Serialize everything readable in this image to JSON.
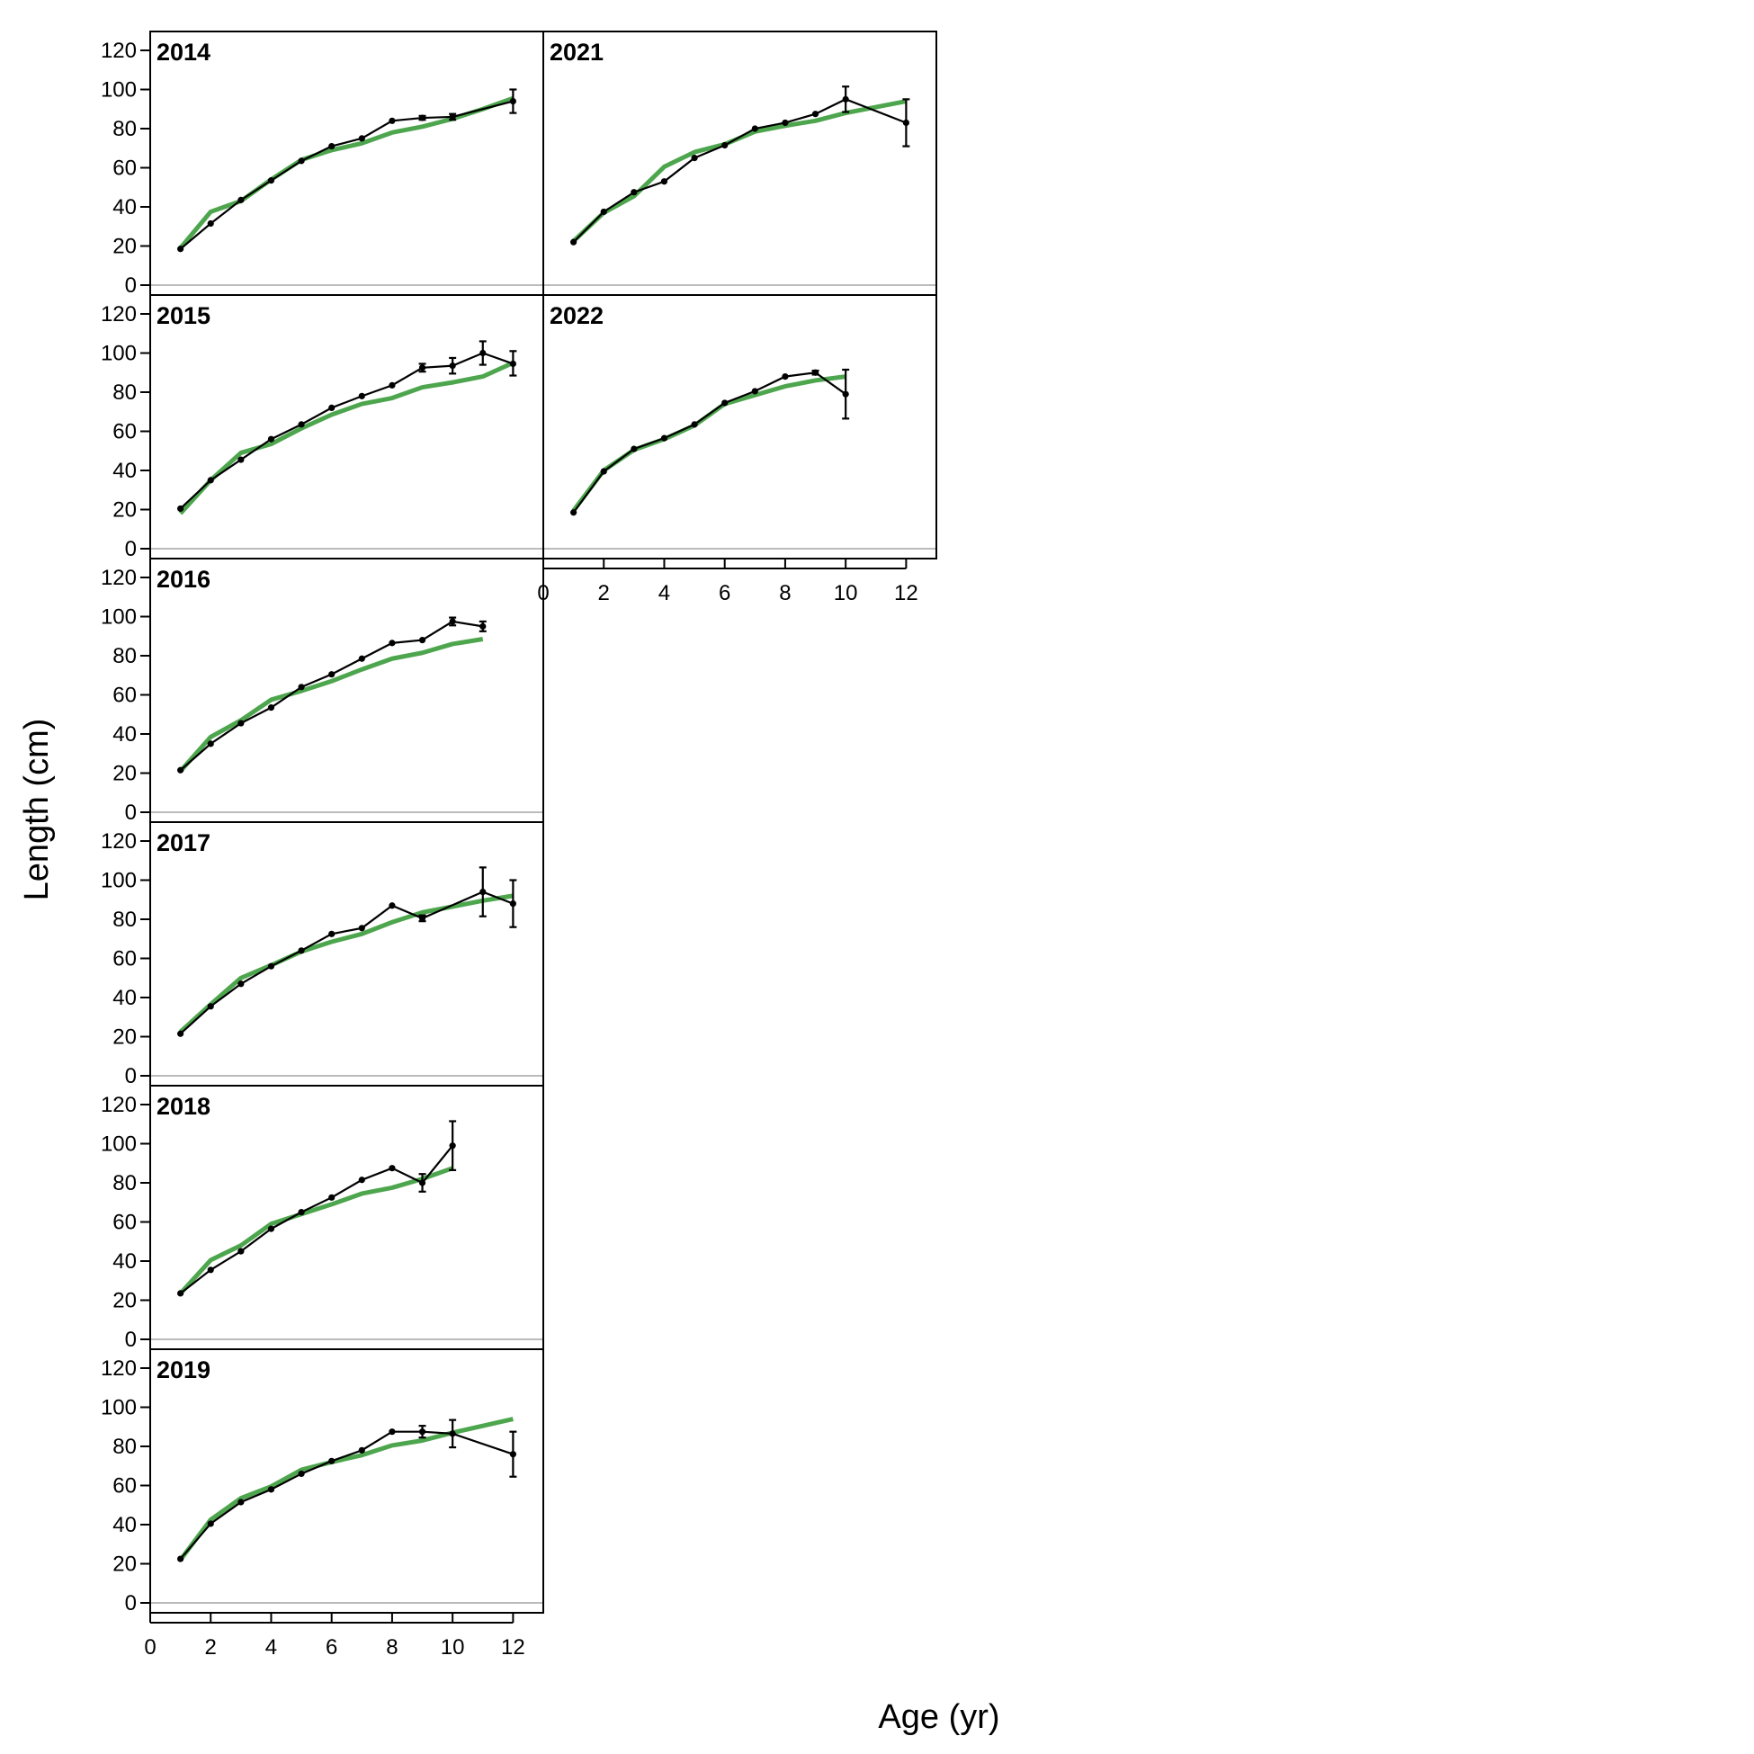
{
  "chart_data": {
    "type": "line",
    "xlabel": "Age (yr)",
    "ylabel": "Length (cm)",
    "xlim": [
      0,
      13
    ],
    "ylim": [
      0,
      120
    ],
    "x_ticks": [
      0,
      2,
      4,
      6,
      8,
      10,
      12
    ],
    "y_ticks": [
      0,
      20,
      40,
      60,
      80,
      100,
      120
    ],
    "grid": false,
    "colors": {
      "observed": "#000000",
      "expected": "#4da64d",
      "zero_line": "#bbbbbb"
    },
    "panels": [
      {
        "label": "2014",
        "observed": [
          {
            "x": 1,
            "y": 18.5
          },
          {
            "x": 2,
            "y": 31.5
          },
          {
            "x": 3,
            "y": 43.5
          },
          {
            "x": 4,
            "y": 53.5
          },
          {
            "x": 5,
            "y": 63.5
          },
          {
            "x": 6,
            "y": 71
          },
          {
            "x": 7,
            "y": 75
          },
          {
            "x": 8,
            "y": 84
          },
          {
            "x": 9,
            "y": 85.5,
            "lo": 84.5,
            "hi": 86.5
          },
          {
            "x": 10,
            "y": 86,
            "lo": 84.5,
            "hi": 87.5
          },
          {
            "x": 12,
            "y": 94,
            "lo": 88,
            "hi": 100
          }
        ],
        "expected": [
          {
            "x": 1,
            "y": 19
          },
          {
            "x": 2,
            "y": 37.5
          },
          {
            "x": 3,
            "y": 43
          },
          {
            "x": 4,
            "y": 54
          },
          {
            "x": 5,
            "y": 64
          },
          {
            "x": 6,
            "y": 69
          },
          {
            "x": 7,
            "y": 72.5
          },
          {
            "x": 8,
            "y": 78
          },
          {
            "x": 9,
            "y": 81
          },
          {
            "x": 10,
            "y": 85
          },
          {
            "x": 11,
            "y": 90
          },
          {
            "x": 12,
            "y": 95.5
          }
        ]
      },
      {
        "label": "2015",
        "observed": [
          {
            "x": 1,
            "y": 20.5
          },
          {
            "x": 2,
            "y": 35
          },
          {
            "x": 3,
            "y": 45.5
          },
          {
            "x": 4,
            "y": 56
          },
          {
            "x": 5,
            "y": 63.5
          },
          {
            "x": 6,
            "y": 72
          },
          {
            "x": 7,
            "y": 78
          },
          {
            "x": 8,
            "y": 83.5
          },
          {
            "x": 9,
            "y": 92.5,
            "lo": 90.5,
            "hi": 94.5
          },
          {
            "x": 10,
            "y": 93.5,
            "lo": 89.5,
            "hi": 97.5
          },
          {
            "x": 11,
            "y": 100,
            "lo": 94,
            "hi": 106
          },
          {
            "x": 12,
            "y": 94.5,
            "lo": 88.5,
            "hi": 101
          }
        ],
        "expected": [
          {
            "x": 1,
            "y": 18
          },
          {
            "x": 2,
            "y": 35
          },
          {
            "x": 3,
            "y": 49
          },
          {
            "x": 4,
            "y": 53.5
          },
          {
            "x": 5,
            "y": 61.5
          },
          {
            "x": 6,
            "y": 68.5
          },
          {
            "x": 7,
            "y": 74
          },
          {
            "x": 8,
            "y": 77
          },
          {
            "x": 9,
            "y": 82.5
          },
          {
            "x": 10,
            "y": 85
          },
          {
            "x": 11,
            "y": 88
          },
          {
            "x": 12,
            "y": 95
          }
        ]
      },
      {
        "label": "2016",
        "observed": [
          {
            "x": 1,
            "y": 21.5
          },
          {
            "x": 2,
            "y": 35
          },
          {
            "x": 3,
            "y": 45.5
          },
          {
            "x": 4,
            "y": 53.5
          },
          {
            "x": 5,
            "y": 64
          },
          {
            "x": 6,
            "y": 70.5
          },
          {
            "x": 7,
            "y": 78.5
          },
          {
            "x": 8,
            "y": 86.5
          },
          {
            "x": 9,
            "y": 88
          },
          {
            "x": 10,
            "y": 97.5,
            "lo": 95.5,
            "hi": 99.5
          },
          {
            "x": 11,
            "y": 95,
            "lo": 92.5,
            "hi": 97.5
          }
        ],
        "expected": [
          {
            "x": 1,
            "y": 21
          },
          {
            "x": 2,
            "y": 38.5
          },
          {
            "x": 3,
            "y": 47
          },
          {
            "x": 4,
            "y": 57.5
          },
          {
            "x": 5,
            "y": 62
          },
          {
            "x": 6,
            "y": 67
          },
          {
            "x": 7,
            "y": 73
          },
          {
            "x": 8,
            "y": 78.5
          },
          {
            "x": 9,
            "y": 81.5
          },
          {
            "x": 10,
            "y": 86
          },
          {
            "x": 11,
            "y": 88.5
          }
        ]
      },
      {
        "label": "2017",
        "observed": [
          {
            "x": 1,
            "y": 21.5
          },
          {
            "x": 2,
            "y": 35.5
          },
          {
            "x": 3,
            "y": 47
          },
          {
            "x": 4,
            "y": 56
          },
          {
            "x": 5,
            "y": 64
          },
          {
            "x": 6,
            "y": 72.5
          },
          {
            "x": 7,
            "y": 75.5
          },
          {
            "x": 8,
            "y": 87
          },
          {
            "x": 9,
            "y": 80.5,
            "lo": 79,
            "hi": 82
          },
          {
            "x": 11,
            "y": 94,
            "lo": 81.5,
            "hi": 106.5
          },
          {
            "x": 12,
            "y": 88,
            "lo": 76,
            "hi": 100
          }
        ],
        "expected": [
          {
            "x": 1,
            "y": 22.5
          },
          {
            "x": 2,
            "y": 36.5
          },
          {
            "x": 3,
            "y": 50
          },
          {
            "x": 4,
            "y": 56.5
          },
          {
            "x": 5,
            "y": 63.5
          },
          {
            "x": 6,
            "y": 68.5
          },
          {
            "x": 7,
            "y": 72.5
          },
          {
            "x": 8,
            "y": 78.5
          },
          {
            "x": 9,
            "y": 83.5
          },
          {
            "x": 10,
            "y": 86.5
          },
          {
            "x": 11,
            "y": 89.5
          },
          {
            "x": 12,
            "y": 92
          }
        ]
      },
      {
        "label": "2018",
        "observed": [
          {
            "x": 1,
            "y": 23.5
          },
          {
            "x": 2,
            "y": 35.5
          },
          {
            "x": 3,
            "y": 45
          },
          {
            "x": 4,
            "y": 56.5
          },
          {
            "x": 5,
            "y": 65
          },
          {
            "x": 6,
            "y": 72.5
          },
          {
            "x": 7,
            "y": 81.5
          },
          {
            "x": 8,
            "y": 87.5
          },
          {
            "x": 9,
            "y": 80,
            "lo": 75.5,
            "hi": 84.5
          },
          {
            "x": 10,
            "y": 99,
            "lo": 86.5,
            "hi": 111.5
          }
        ],
        "expected": [
          {
            "x": 1,
            "y": 23.5
          },
          {
            "x": 2,
            "y": 40.5
          },
          {
            "x": 3,
            "y": 48
          },
          {
            "x": 4,
            "y": 59
          },
          {
            "x": 5,
            "y": 64
          },
          {
            "x": 6,
            "y": 69
          },
          {
            "x": 7,
            "y": 74.5
          },
          {
            "x": 8,
            "y": 77.5
          },
          {
            "x": 9,
            "y": 82
          },
          {
            "x": 10,
            "y": 87.5
          }
        ]
      },
      {
        "label": "2019",
        "observed": [
          {
            "x": 1,
            "y": 22.5
          },
          {
            "x": 2,
            "y": 40.5
          },
          {
            "x": 3,
            "y": 51.5
          },
          {
            "x": 4,
            "y": 58
          },
          {
            "x": 5,
            "y": 66
          },
          {
            "x": 6,
            "y": 72.5
          },
          {
            "x": 7,
            "y": 78
          },
          {
            "x": 8,
            "y": 87.5
          },
          {
            "x": 9,
            "y": 87.5,
            "lo": 84.5,
            "hi": 90.5
          },
          {
            "x": 10,
            "y": 86.5,
            "lo": 79.5,
            "hi": 93.5
          },
          {
            "x": 12,
            "y": 76,
            "lo": 64.5,
            "hi": 87.5
          }
        ],
        "expected": [
          {
            "x": 1,
            "y": 22
          },
          {
            "x": 2,
            "y": 42.5
          },
          {
            "x": 3,
            "y": 53.5
          },
          {
            "x": 4,
            "y": 59.5
          },
          {
            "x": 5,
            "y": 68
          },
          {
            "x": 6,
            "y": 72
          },
          {
            "x": 7,
            "y": 75.5
          },
          {
            "x": 8,
            "y": 80.5
          },
          {
            "x": 9,
            "y": 83
          },
          {
            "x": 10,
            "y": 87
          },
          {
            "x": 11,
            "y": 90.5
          },
          {
            "x": 12,
            "y": 94
          }
        ]
      },
      {
        "label": "2021",
        "observed": [
          {
            "x": 1,
            "y": 22
          },
          {
            "x": 2,
            "y": 37.5
          },
          {
            "x": 3,
            "y": 47.5
          },
          {
            "x": 4,
            "y": 53
          },
          {
            "x": 5,
            "y": 65
          },
          {
            "x": 6,
            "y": 71.5
          },
          {
            "x": 7,
            "y": 80
          },
          {
            "x": 8,
            "y": 83
          },
          {
            "x": 9,
            "y": 87.5
          },
          {
            "x": 10,
            "y": 95,
            "lo": 88.5,
            "hi": 101.5
          },
          {
            "x": 12,
            "y": 83,
            "lo": 71,
            "hi": 95
          }
        ],
        "expected": [
          {
            "x": 1,
            "y": 22.5
          },
          {
            "x": 2,
            "y": 37
          },
          {
            "x": 3,
            "y": 45.5
          },
          {
            "x": 4,
            "y": 60.5
          },
          {
            "x": 5,
            "y": 68
          },
          {
            "x": 6,
            "y": 72
          },
          {
            "x": 7,
            "y": 78.5
          },
          {
            "x": 8,
            "y": 81.5
          },
          {
            "x": 9,
            "y": 84
          },
          {
            "x": 10,
            "y": 88
          },
          {
            "x": 11,
            "y": 91
          },
          {
            "x": 12,
            "y": 94
          }
        ]
      },
      {
        "label": "2022",
        "observed": [
          {
            "x": 1,
            "y": 18.5
          },
          {
            "x": 2,
            "y": 39.5
          },
          {
            "x": 3,
            "y": 51
          },
          {
            "x": 4,
            "y": 56.5
          },
          {
            "x": 5,
            "y": 63.5
          },
          {
            "x": 6,
            "y": 74.5
          },
          {
            "x": 7,
            "y": 80.5
          },
          {
            "x": 8,
            "y": 88
          },
          {
            "x": 9,
            "y": 90,
            "lo": 89,
            "hi": 91
          },
          {
            "x": 10,
            "y": 79,
            "lo": 66.5,
            "hi": 91.5
          }
        ],
        "expected": [
          {
            "x": 1,
            "y": 19.5
          },
          {
            "x": 2,
            "y": 40
          },
          {
            "x": 3,
            "y": 50.5
          },
          {
            "x": 4,
            "y": 56
          },
          {
            "x": 5,
            "y": 63
          },
          {
            "x": 6,
            "y": 74
          },
          {
            "x": 7,
            "y": 78.5
          },
          {
            "x": 8,
            "y": 83
          },
          {
            "x": 9,
            "y": 86
          },
          {
            "x": 10,
            "y": 88
          }
        ]
      }
    ]
  }
}
